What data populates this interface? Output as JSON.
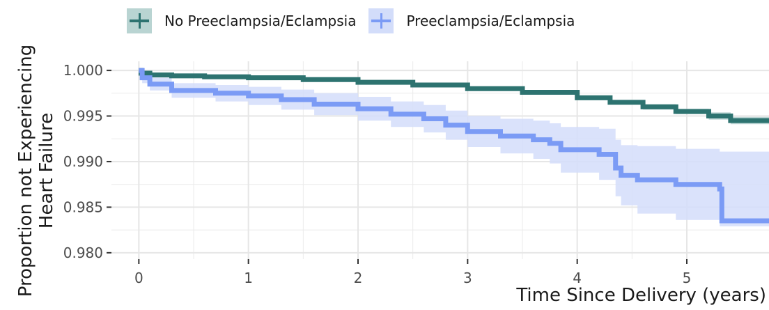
{
  "legend": {
    "items": [
      {
        "label": "No Preeclampsia/Eclampsia",
        "color": "#2d7370",
        "fill": "#b9d4d2"
      },
      {
        "label": "Preeclampsia/Eclampsia",
        "color": "#7b9bf5",
        "fill": "#d3ddfa"
      }
    ]
  },
  "axes": {
    "ylabel_line1": "Proportion not Experiencing",
    "ylabel_line2": "Heart Failure",
    "xlabel": "Time Since Delivery (years)"
  },
  "chart_data": {
    "type": "line",
    "xlabel": "Time Since Delivery (years)",
    "ylabel": "Proportion not Experiencing Heart Failure",
    "xlim": [
      -0.25,
      5.75
    ],
    "ylim": [
      0.9793,
      1.001
    ],
    "x_ticks": [
      0,
      1,
      2,
      3,
      4,
      5
    ],
    "x_tick_labels": [
      "0",
      "1",
      "2",
      "3",
      "4",
      "5"
    ],
    "y_ticks": [
      0.98,
      0.985,
      0.99,
      0.995,
      1.0
    ],
    "y_tick_labels": [
      "0.980",
      "0.985",
      "0.990",
      "0.995",
      "1.000"
    ],
    "grid": true,
    "legend_position": "top",
    "series": [
      {
        "name": "No Preeclampsia/Eclampsia",
        "color": "#2d7370",
        "step": true,
        "x": [
          0,
          0.02,
          0.1,
          0.3,
          0.6,
          1.0,
          1.5,
          2.0,
          2.5,
          3.0,
          3.5,
          4.0,
          4.3,
          4.6,
          4.9,
          5.2,
          5.4,
          5.75
        ],
        "y": [
          1.0,
          0.9997,
          0.9995,
          0.9994,
          0.9993,
          0.9992,
          0.999,
          0.9987,
          0.9984,
          0.998,
          0.9976,
          0.997,
          0.9965,
          0.996,
          0.9955,
          0.995,
          0.9945,
          0.9945
        ],
        "lower": [
          1.0,
          0.9996,
          0.9994,
          0.9993,
          0.9992,
          0.9991,
          0.9989,
          0.9986,
          0.9983,
          0.9979,
          0.9975,
          0.9969,
          0.9963,
          0.9957,
          0.9952,
          0.9946,
          0.9941,
          0.9941
        ],
        "upper": [
          1.0,
          0.9998,
          0.9996,
          0.9995,
          0.9994,
          0.9993,
          0.9991,
          0.9988,
          0.9985,
          0.9981,
          0.9977,
          0.9971,
          0.9967,
          0.9963,
          0.9958,
          0.9954,
          0.9949,
          0.9949
        ]
      },
      {
        "name": "Preeclampsia/Eclampsia",
        "color": "#7b9bf5",
        "step": true,
        "x": [
          0,
          0.03,
          0.1,
          0.3,
          0.7,
          1.0,
          1.3,
          1.6,
          2.0,
          2.3,
          2.6,
          2.8,
          3.0,
          3.3,
          3.6,
          3.75,
          3.85,
          4.2,
          4.35,
          4.4,
          4.55,
          4.9,
          5.3,
          5.32,
          5.75
        ],
        "y": [
          1.0,
          0.9992,
          0.9985,
          0.9978,
          0.9975,
          0.9972,
          0.9968,
          0.9963,
          0.9958,
          0.9952,
          0.9947,
          0.994,
          0.9933,
          0.9928,
          0.9924,
          0.992,
          0.9913,
          0.9908,
          0.9893,
          0.9885,
          0.988,
          0.9875,
          0.987,
          0.9835,
          0.9835
        ],
        "lower": [
          1.0,
          0.9986,
          0.9978,
          0.997,
          0.9966,
          0.9962,
          0.9957,
          0.9951,
          0.9945,
          0.9938,
          0.9932,
          0.9924,
          0.9916,
          0.9909,
          0.9903,
          0.9898,
          0.9888,
          0.988,
          0.9862,
          0.9852,
          0.9843,
          0.9836,
          0.9829,
          0.9829,
          0.9829
        ],
        "upper": [
          1.0,
          0.9998,
          0.9992,
          0.9986,
          0.9984,
          0.9982,
          0.9979,
          0.9975,
          0.9971,
          0.9966,
          0.9962,
          0.9956,
          0.995,
          0.9947,
          0.9945,
          0.9942,
          0.9938,
          0.9936,
          0.9924,
          0.9918,
          0.9917,
          0.9914,
          0.9911,
          0.9911,
          0.9911
        ]
      }
    ]
  }
}
